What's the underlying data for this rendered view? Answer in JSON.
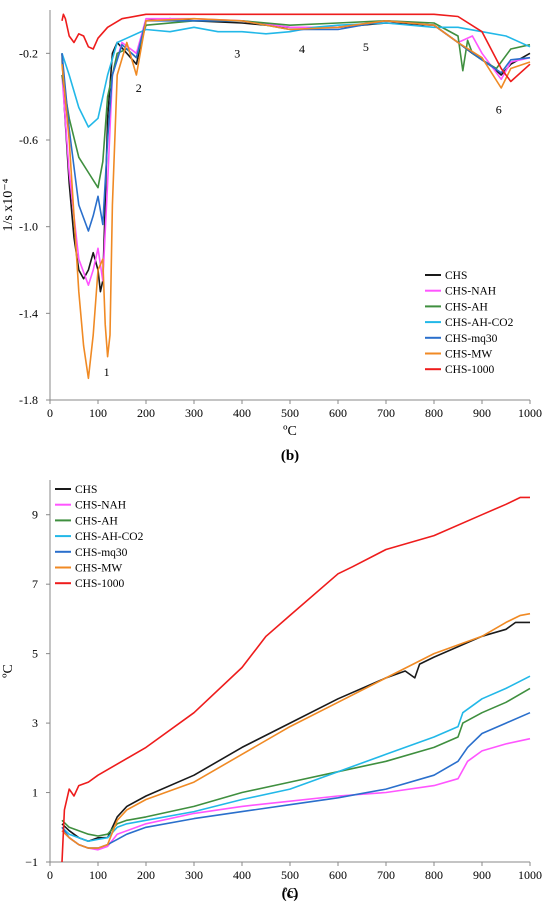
{
  "colors": {
    "CHS": "#1a1a1a",
    "CHS-NAH": "#ff55ff",
    "CHS-AH": "#3f8f3f",
    "CHS-AH-CO2": "#22b8e8",
    "CHS-mq30": "#2a6fcc",
    "CHS-MW": "#f08a24",
    "CHS-1000": "#ee1c1c"
  },
  "chart_data": [
    {
      "type": "line",
      "panel_label": "(b)",
      "xlabel": "ºC",
      "ylabel": "1/s x10⁻⁴",
      "xlim": [
        0,
        1000
      ],
      "ylim": [
        -1.8,
        0
      ],
      "xticks": [
        0,
        100,
        200,
        300,
        400,
        500,
        600,
        700,
        800,
        900,
        1000
      ],
      "yticks": [
        -0.2,
        -0.6,
        -1.0,
        -1.4,
        -1.8
      ],
      "ytick_labels": [
        "-0.2",
        "-0.6",
        "-1.0",
        "-1.4",
        "-1.8"
      ],
      "grid": false,
      "legend_position": "bottom-right",
      "annotations": [
        {
          "text": "1",
          "x": 118,
          "y": -1.67
        },
        {
          "text": "2",
          "x": 185,
          "y": -0.36
        },
        {
          "text": "3",
          "x": 390,
          "y": -0.2
        },
        {
          "text": "4",
          "x": 525,
          "y": -0.18
        },
        {
          "text": "5",
          "x": 658,
          "y": -0.17
        },
        {
          "text": "6",
          "x": 935,
          "y": -0.46
        }
      ],
      "series": [
        {
          "name": "CHS",
          "x": [
            25,
            30,
            40,
            50,
            60,
            70,
            80,
            90,
            100,
            105,
            110,
            115,
            120,
            130,
            140,
            160,
            180,
            200,
            250,
            300,
            400,
            500,
            600,
            700,
            800,
            850,
            880,
            920,
            940,
            960,
            1000
          ],
          "y": [
            -0.2,
            -0.45,
            -0.8,
            -1.05,
            -1.2,
            -1.24,
            -1.2,
            -1.12,
            -1.2,
            -1.3,
            -1.25,
            -0.9,
            -0.5,
            -0.2,
            -0.15,
            -0.2,
            -0.25,
            -0.05,
            -0.04,
            -0.05,
            -0.06,
            -0.08,
            -0.08,
            -0.06,
            -0.07,
            -0.15,
            -0.2,
            -0.26,
            -0.3,
            -0.25,
            -0.2
          ]
        },
        {
          "name": "CHS-NAH",
          "x": [
            25,
            40,
            60,
            80,
            90,
            100,
            110,
            120,
            130,
            150,
            180,
            200,
            300,
            400,
            500,
            600,
            700,
            800,
            850,
            880,
            900,
            940,
            960,
            1000
          ],
          "y": [
            -0.3,
            -0.75,
            -1.15,
            -1.27,
            -1.2,
            -1.1,
            -1.25,
            -0.8,
            -0.3,
            -0.15,
            -0.2,
            -0.04,
            -0.04,
            -0.05,
            -0.08,
            -0.08,
            -0.05,
            -0.07,
            -0.15,
            -0.12,
            -0.2,
            -0.32,
            -0.24,
            -0.22
          ]
        },
        {
          "name": "CHS-AH",
          "x": [
            25,
            40,
            60,
            80,
            100,
            110,
            120,
            140,
            160,
            180,
            200,
            300,
            400,
            500,
            600,
            700,
            800,
            850,
            860,
            870,
            880,
            900,
            930,
            960,
            1000
          ],
          "y": [
            -0.3,
            -0.5,
            -0.68,
            -0.75,
            -0.82,
            -0.7,
            -0.4,
            -0.2,
            -0.18,
            -0.22,
            -0.07,
            -0.05,
            -0.05,
            -0.07,
            -0.06,
            -0.05,
            -0.06,
            -0.12,
            -0.28,
            -0.14,
            -0.2,
            -0.23,
            -0.27,
            -0.18,
            -0.16
          ]
        },
        {
          "name": "CHS-AH-CO2",
          "x": [
            25,
            40,
            60,
            80,
            100,
            120,
            140,
            160,
            200,
            250,
            300,
            350,
            400,
            450,
            500,
            550,
            600,
            700,
            800,
            850,
            900,
            950,
            1000
          ],
          "y": [
            -0.2,
            -0.3,
            -0.45,
            -0.54,
            -0.5,
            -0.3,
            -0.15,
            -0.13,
            -0.09,
            -0.1,
            -0.08,
            -0.1,
            -0.1,
            -0.11,
            -0.1,
            -0.08,
            -0.07,
            -0.06,
            -0.08,
            -0.08,
            -0.1,
            -0.12,
            -0.17
          ]
        },
        {
          "name": "CHS-mq30",
          "x": [
            25,
            40,
            60,
            80,
            90,
            100,
            110,
            120,
            130,
            150,
            180,
            200,
            300,
            400,
            500,
            600,
            700,
            800,
            850,
            900,
            940,
            960,
            1000
          ],
          "y": [
            -0.2,
            -0.55,
            -0.9,
            -1.02,
            -0.95,
            -0.86,
            -0.99,
            -0.6,
            -0.3,
            -0.16,
            -0.22,
            -0.05,
            -0.05,
            -0.05,
            -0.09,
            -0.09,
            -0.05,
            -0.07,
            -0.15,
            -0.23,
            -0.29,
            -0.23,
            -0.22
          ]
        },
        {
          "name": "CHS-MW",
          "x": [
            25,
            40,
            60,
            70,
            80,
            90,
            100,
            110,
            115,
            120,
            125,
            130,
            140,
            160,
            180,
            200,
            300,
            400,
            500,
            600,
            700,
            800,
            850,
            900,
            940,
            960,
            1000
          ],
          "y": [
            -0.25,
            -0.6,
            -1.3,
            -1.55,
            -1.7,
            -1.5,
            -1.2,
            -1.15,
            -1.45,
            -1.6,
            -1.5,
            -0.9,
            -0.3,
            -0.15,
            -0.3,
            -0.05,
            -0.04,
            -0.05,
            -0.09,
            -0.08,
            -0.05,
            -0.07,
            -0.15,
            -0.22,
            -0.36,
            -0.27,
            -0.24
          ]
        },
        {
          "name": "CHS-1000",
          "x": [
            25,
            28,
            32,
            40,
            50,
            60,
            70,
            80,
            90,
            100,
            120,
            150,
            200,
            250,
            300,
            400,
            500,
            600,
            700,
            800,
            850,
            900,
            940,
            960,
            1000
          ],
          "y": [
            -0.05,
            -0.02,
            -0.04,
            -0.12,
            -0.15,
            -0.11,
            -0.12,
            -0.17,
            -0.18,
            -0.13,
            -0.08,
            -0.04,
            -0.02,
            -0.02,
            -0.02,
            -0.02,
            -0.02,
            -0.02,
            -0.02,
            -0.02,
            -0.03,
            -0.1,
            -0.27,
            -0.33,
            -0.25
          ]
        }
      ],
      "legend": [
        "CHS",
        "CHS-NAH",
        "CHS-AH",
        "CHS-AH-CO2",
        "CHS-mq30",
        "CHS-MW",
        "CHS-1000"
      ]
    },
    {
      "type": "line",
      "panel_label": "(c)",
      "xlabel": "ºC",
      "ylabel": "ºC",
      "xlim": [
        0,
        1000
      ],
      "ylim": [
        -1,
        10
      ],
      "xticks": [
        0,
        100,
        200,
        300,
        400,
        500,
        600,
        700,
        800,
        900,
        1000
      ],
      "yticks": [
        -1,
        1,
        3,
        5,
        7,
        9
      ],
      "ytick_labels": [
        "−1",
        "1",
        "3",
        "5",
        "7",
        "9"
      ],
      "grid": false,
      "legend_position": "top-left",
      "series": [
        {
          "name": "CHS",
          "x": [
            25,
            40,
            60,
            80,
            100,
            120,
            140,
            160,
            200,
            300,
            400,
            500,
            600,
            700,
            740,
            760,
            770,
            800,
            900,
            950,
            970,
            1000
          ],
          "y": [
            0.1,
            -0.1,
            -0.3,
            -0.4,
            -0.3,
            -0.3,
            0.3,
            0.6,
            0.9,
            1.5,
            2.3,
            3.0,
            3.7,
            4.3,
            4.5,
            4.3,
            4.7,
            4.9,
            5.5,
            5.7,
            5.9,
            5.9
          ]
        },
        {
          "name": "CHS-NAH",
          "x": [
            25,
            40,
            60,
            80,
            100,
            120,
            140,
            180,
            200,
            300,
            400,
            500,
            600,
            700,
            800,
            850,
            870,
            900,
            950,
            1000
          ],
          "y": [
            -0.1,
            -0.3,
            -0.5,
            -0.6,
            -0.65,
            -0.55,
            -0.2,
            -0.0,
            0.1,
            0.4,
            0.6,
            0.75,
            0.9,
            1.0,
            1.2,
            1.4,
            1.9,
            2.2,
            2.4,
            2.55
          ]
        },
        {
          "name": "CHS-AH",
          "x": [
            25,
            40,
            60,
            80,
            100,
            120,
            140,
            160,
            200,
            300,
            400,
            500,
            600,
            700,
            800,
            850,
            860,
            900,
            950,
            1000
          ],
          "y": [
            0.2,
            0.0,
            -0.1,
            -0.2,
            -0.25,
            -0.2,
            0.1,
            0.2,
            0.3,
            0.6,
            1.0,
            1.3,
            1.6,
            1.9,
            2.3,
            2.6,
            3.0,
            3.3,
            3.6,
            4.0
          ]
        },
        {
          "name": "CHS-AH-CO2",
          "x": [
            25,
            40,
            60,
            80,
            100,
            120,
            140,
            160,
            200,
            300,
            400,
            500,
            600,
            700,
            800,
            850,
            860,
            900,
            950,
            1000
          ],
          "y": [
            0.0,
            -0.2,
            -0.3,
            -0.4,
            -0.35,
            -0.3,
            0.0,
            0.1,
            0.2,
            0.45,
            0.8,
            1.1,
            1.6,
            2.1,
            2.6,
            2.9,
            3.3,
            3.7,
            4.0,
            4.35
          ]
        },
        {
          "name": "CHS-mq30",
          "x": [
            25,
            40,
            60,
            80,
            100,
            120,
            140,
            160,
            200,
            300,
            400,
            500,
            600,
            700,
            800,
            850,
            870,
            900,
            950,
            1000
          ],
          "y": [
            0.0,
            -0.3,
            -0.5,
            -0.6,
            -0.6,
            -0.5,
            -0.35,
            -0.2,
            0.0,
            0.25,
            0.45,
            0.65,
            0.85,
            1.1,
            1.5,
            1.9,
            2.3,
            2.7,
            3.0,
            3.3
          ]
        },
        {
          "name": "CHS-MW",
          "x": [
            25,
            40,
            60,
            80,
            100,
            120,
            140,
            160,
            200,
            300,
            400,
            500,
            600,
            700,
            800,
            900,
            950,
            980,
            1000
          ],
          "y": [
            -0.1,
            -0.3,
            -0.5,
            -0.6,
            -0.6,
            -0.5,
            0.2,
            0.5,
            0.8,
            1.3,
            2.1,
            2.9,
            3.6,
            4.3,
            5.0,
            5.5,
            5.9,
            6.1,
            6.15
          ]
        },
        {
          "name": "CHS-1000",
          "x": [
            25,
            30,
            40,
            50,
            60,
            80,
            100,
            150,
            200,
            300,
            400,
            450,
            500,
            600,
            630,
            700,
            800,
            900,
            950,
            980,
            1000
          ],
          "y": [
            -1.0,
            0.5,
            1.1,
            0.9,
            1.2,
            1.3,
            1.5,
            1.9,
            2.3,
            3.3,
            4.6,
            5.5,
            6.1,
            7.3,
            7.5,
            8.0,
            8.4,
            9.0,
            9.3,
            9.5,
            9.5
          ]
        }
      ],
      "legend": [
        "CHS",
        "CHS-NAH",
        "CHS-AH",
        "CHS-AH-CO2",
        "CHS-mq30",
        "CHS-MW",
        "CHS-1000"
      ]
    }
  ]
}
